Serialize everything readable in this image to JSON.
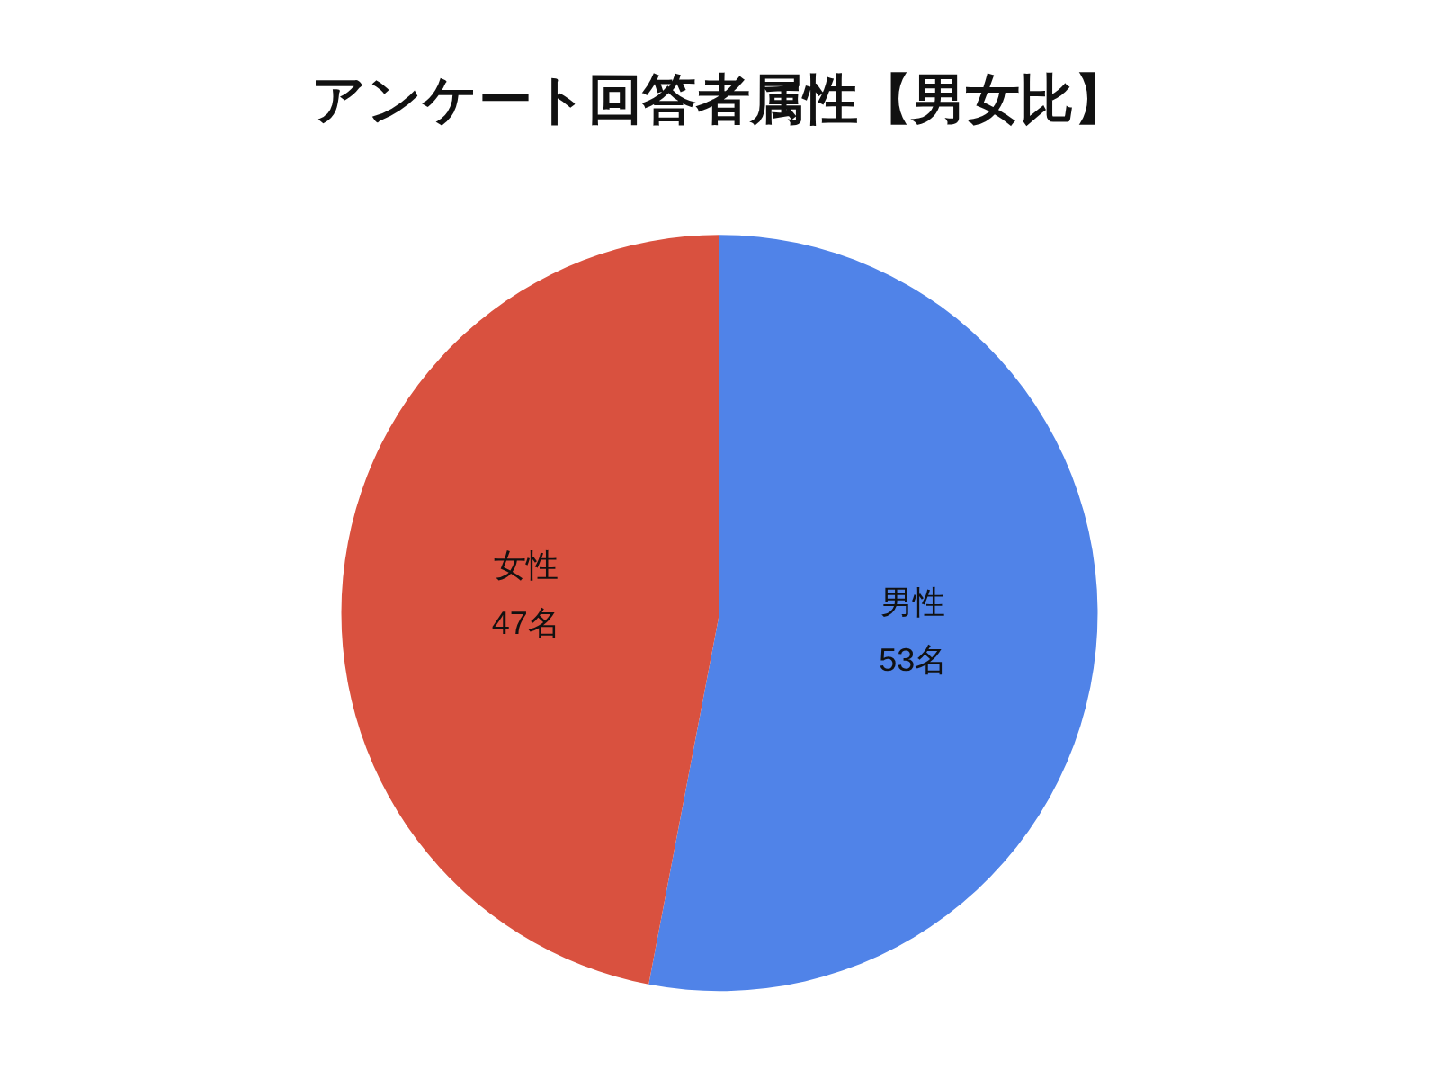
{
  "chart_data": {
    "type": "pie",
    "title": "アンケート回答者属性【男女比】",
    "categories": [
      "男性",
      "女性"
    ],
    "values": [
      53,
      47
    ],
    "value_labels": [
      "53名",
      "47名"
    ],
    "colors": [
      "#5083e8",
      "#d9513f"
    ]
  }
}
